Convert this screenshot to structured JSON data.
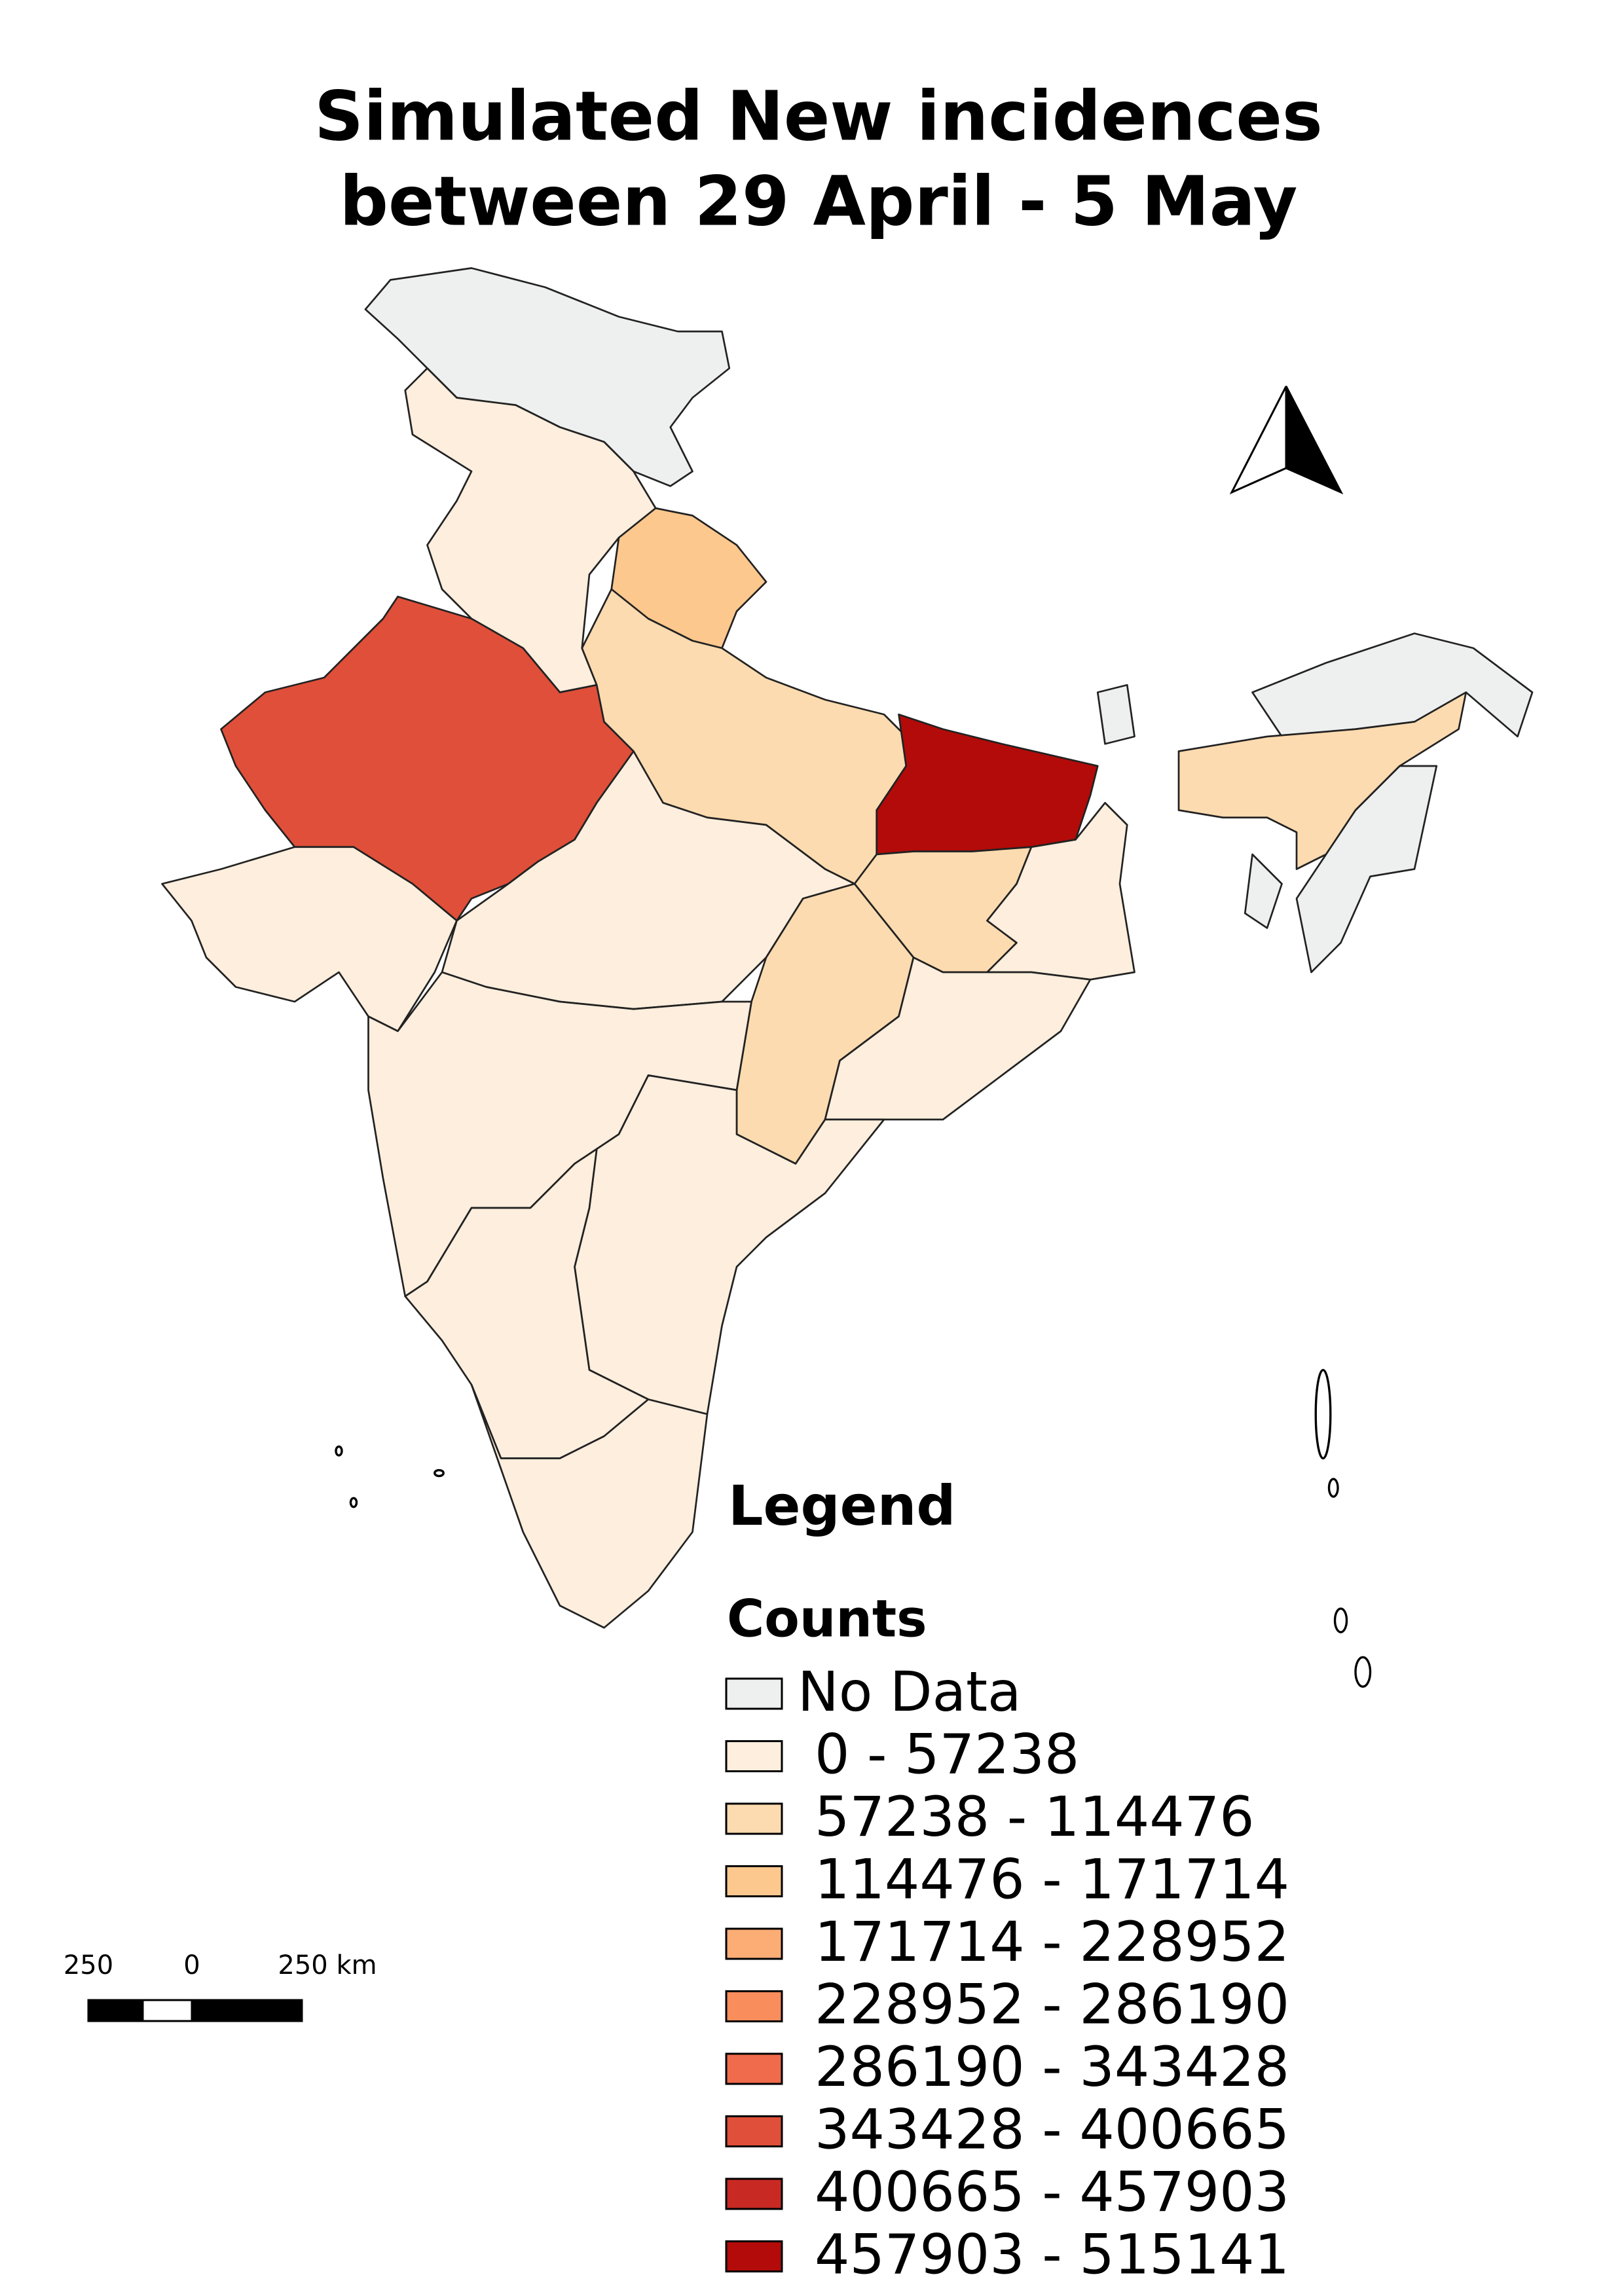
{
  "title": [
    "Simulated New incidences",
    "between 29 April - 5 May"
  ],
  "legend": {
    "heading": "Legend",
    "subtitle": "Counts",
    "items": [
      {
        "label": "No Data",
        "color": "#eef0ef"
      },
      {
        "label": "0 - 57238",
        "color": "#fdeedd"
      },
      {
        "label": "57238 - 114476",
        "color": "#fddbb0"
      },
      {
        "label": "114476 - 171714",
        "color": "#fcc88e"
      },
      {
        "label": "171714 - 228952",
        "color": "#fcad76"
      },
      {
        "label": "228952 - 286190",
        "color": "#f98d5c"
      },
      {
        "label": "286190 - 343428",
        "color": "#f06b4b"
      },
      {
        "label": "343428 - 400665",
        "color": "#e04f39"
      },
      {
        "label": "400665 - 457903",
        "color": "#c82a23"
      },
      {
        "label": "457903 - 515141",
        "color": "#b30b09"
      }
    ]
  },
  "scale_bar": {
    "labels": [
      "250",
      "0",
      "250 km"
    ]
  }
}
